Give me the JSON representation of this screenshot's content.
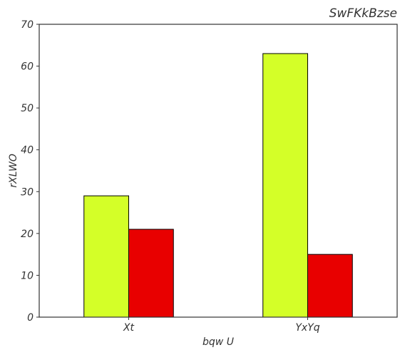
{
  "chart_data": {
    "type": "bar",
    "title": "SwFKkBzse",
    "xlabel": "bqw U",
    "ylabel": "rXLWO",
    "categories": [
      "Xt",
      "YxYq"
    ],
    "series": [
      {
        "values": [
          29,
          63
        ],
        "color": "#d4ff28"
      },
      {
        "values": [
          21,
          15
        ],
        "color": "#e80000"
      }
    ],
    "ylim": [
      0,
      70
    ],
    "yticks": [
      0,
      10,
      20,
      30,
      40,
      50,
      60,
      70
    ],
    "grid": false,
    "legend": "none",
    "title_align": "right"
  }
}
